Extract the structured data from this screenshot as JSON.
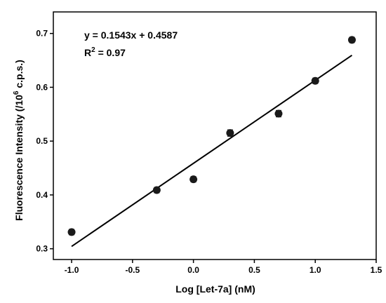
{
  "chart_data": {
    "type": "scatter",
    "title": "",
    "xlabel": "Log [Let-7a] (nM)",
    "ylabel": {
      "before": "Fluorescence Intensity (/10",
      "sup": "6",
      "after": " c.p.s.)"
    },
    "xlim": [
      -1.15,
      1.5
    ],
    "ylim": [
      0.28,
      0.74
    ],
    "xticks": [
      -1.0,
      -0.5,
      0.0,
      0.5,
      1.0,
      1.5
    ],
    "xtick_labels": [
      "-1.0",
      "-0.5",
      "0.0",
      "0.5",
      "1.0",
      "1.5"
    ],
    "yticks": [
      0.3,
      0.4,
      0.5,
      0.6,
      0.7
    ],
    "ytick_labels": [
      "0.3",
      "0.4",
      "0.5",
      "0.6",
      "0.7"
    ],
    "grid": false,
    "points": [
      {
        "x": -1.0,
        "y": 0.331,
        "err": 0.005
      },
      {
        "x": -0.301,
        "y": 0.409,
        "err": 0.005
      },
      {
        "x": 0.0,
        "y": 0.429,
        "err": 0.005
      },
      {
        "x": 0.301,
        "y": 0.515,
        "err": 0.006
      },
      {
        "x": 0.699,
        "y": 0.551,
        "err": 0.006
      },
      {
        "x": 1.0,
        "y": 0.612,
        "err": 0.005
      },
      {
        "x": 1.301,
        "y": 0.688,
        "err": 0.005
      }
    ],
    "fit": {
      "slope": 0.1543,
      "intercept": 0.4587,
      "x_range": [
        -1.0,
        1.301
      ]
    },
    "annotations": {
      "equation": "y = 0.1543x + 0.4587",
      "r2_prefix": "R",
      "r2_sup": "2",
      "r2_suffix": " = 0.97"
    },
    "colors": {
      "marker": "#1a1a1a",
      "line": "#000000",
      "axis": "#000000"
    }
  }
}
